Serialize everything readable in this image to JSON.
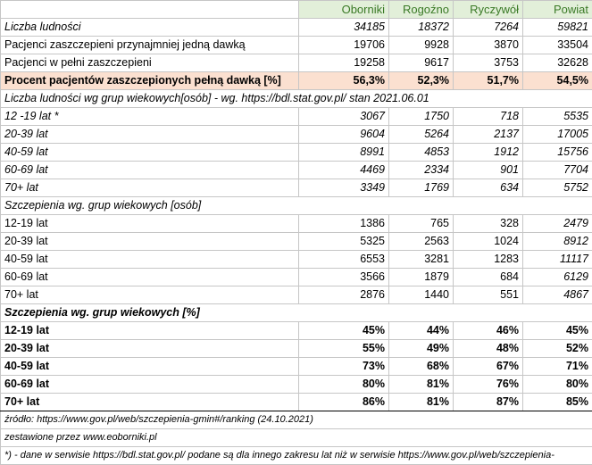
{
  "header": [
    "Oborniki",
    "Rogoźno",
    "Ryczywół",
    "Powiat"
  ],
  "summary": [
    {
      "label": "Liczba ludności",
      "values": [
        "34185",
        "18372",
        "7264",
        "59821"
      ],
      "italic": true
    },
    {
      "label": "Pacjenci zaszczepieni przynajmniej jedną dawką",
      "values": [
        "19706",
        "9928",
        "3870",
        "33504"
      ],
      "italic": false
    },
    {
      "label": "Pacjenci w pełni zaszczepieni",
      "values": [
        "19258",
        "9617",
        "3753",
        "32628"
      ],
      "italic": false
    },
    {
      "label": "Procent pacjentów zaszczepionych pełną dawką [%]",
      "values": [
        "56,3%",
        "52,3%",
        "51,7%",
        "54,5%"
      ],
      "italic": false
    }
  ],
  "population_title": "Liczba ludności wg grup wiekowych[osób] - wg. https://bdl.stat.gov.pl/ stan 2021.06.01",
  "population": [
    {
      "label": "12 -19 lat *",
      "values": [
        "3067",
        "1750",
        "718",
        "5535"
      ]
    },
    {
      "label": "20-39 lat",
      "values": [
        "9604",
        "5264",
        "2137",
        "17005"
      ]
    },
    {
      "label": "40-59 lat",
      "values": [
        "8991",
        "4853",
        "1912",
        "15756"
      ]
    },
    {
      "label": "60-69 lat",
      "values": [
        "4469",
        "2334",
        "901",
        "7704"
      ]
    },
    {
      "label": "70+ lat",
      "values": [
        "3349",
        "1769",
        "634",
        "5752"
      ]
    }
  ],
  "vacc_title": "Szczepienia wg. grup wiekowych [osób]",
  "vaccinations": [
    {
      "label": "12-19 lat",
      "values": [
        "1386",
        "765",
        "328",
        "2479"
      ]
    },
    {
      "label": "20-39 lat",
      "values": [
        "5325",
        "2563",
        "1024",
        "8912"
      ]
    },
    {
      "label": "40-59 lat",
      "values": [
        "6553",
        "3281",
        "1283",
        "11117"
      ]
    },
    {
      "label": "60-69 lat",
      "values": [
        "3566",
        "1879",
        "684",
        "6129"
      ]
    },
    {
      "label": "70+ lat",
      "values": [
        "2876",
        "1440",
        "551",
        "4867"
      ]
    }
  ],
  "pct_title": "Szczepienia wg. grup wiekowych [%]",
  "percentages": [
    {
      "label": "12-19 lat",
      "values": [
        "45%",
        "44%",
        "46%",
        "45%"
      ]
    },
    {
      "label": "20-39 lat",
      "values": [
        "55%",
        "49%",
        "48%",
        "52%"
      ]
    },
    {
      "label": "40-59 lat",
      "values": [
        "73%",
        "68%",
        "67%",
        "71%"
      ]
    },
    {
      "label": "60-69 lat",
      "values": [
        "80%",
        "81%",
        "76%",
        "80%"
      ]
    },
    {
      "label": "70+ lat",
      "values": [
        "86%",
        "81%",
        "87%",
        "85%"
      ]
    }
  ],
  "footer": {
    "source": "źródło: https://www.gov.pl/web/szczepienia-gmin#/ranking  (24.10.2021)",
    "compiled": "zestawione przez www.eoborniki.pl",
    "note": "*) - dane w serwisie https://bdl.stat.gov.pl/ podane są dla innego zakresu lat niż w serwisie https://www.gov.pl/web/szczepienia-"
  }
}
